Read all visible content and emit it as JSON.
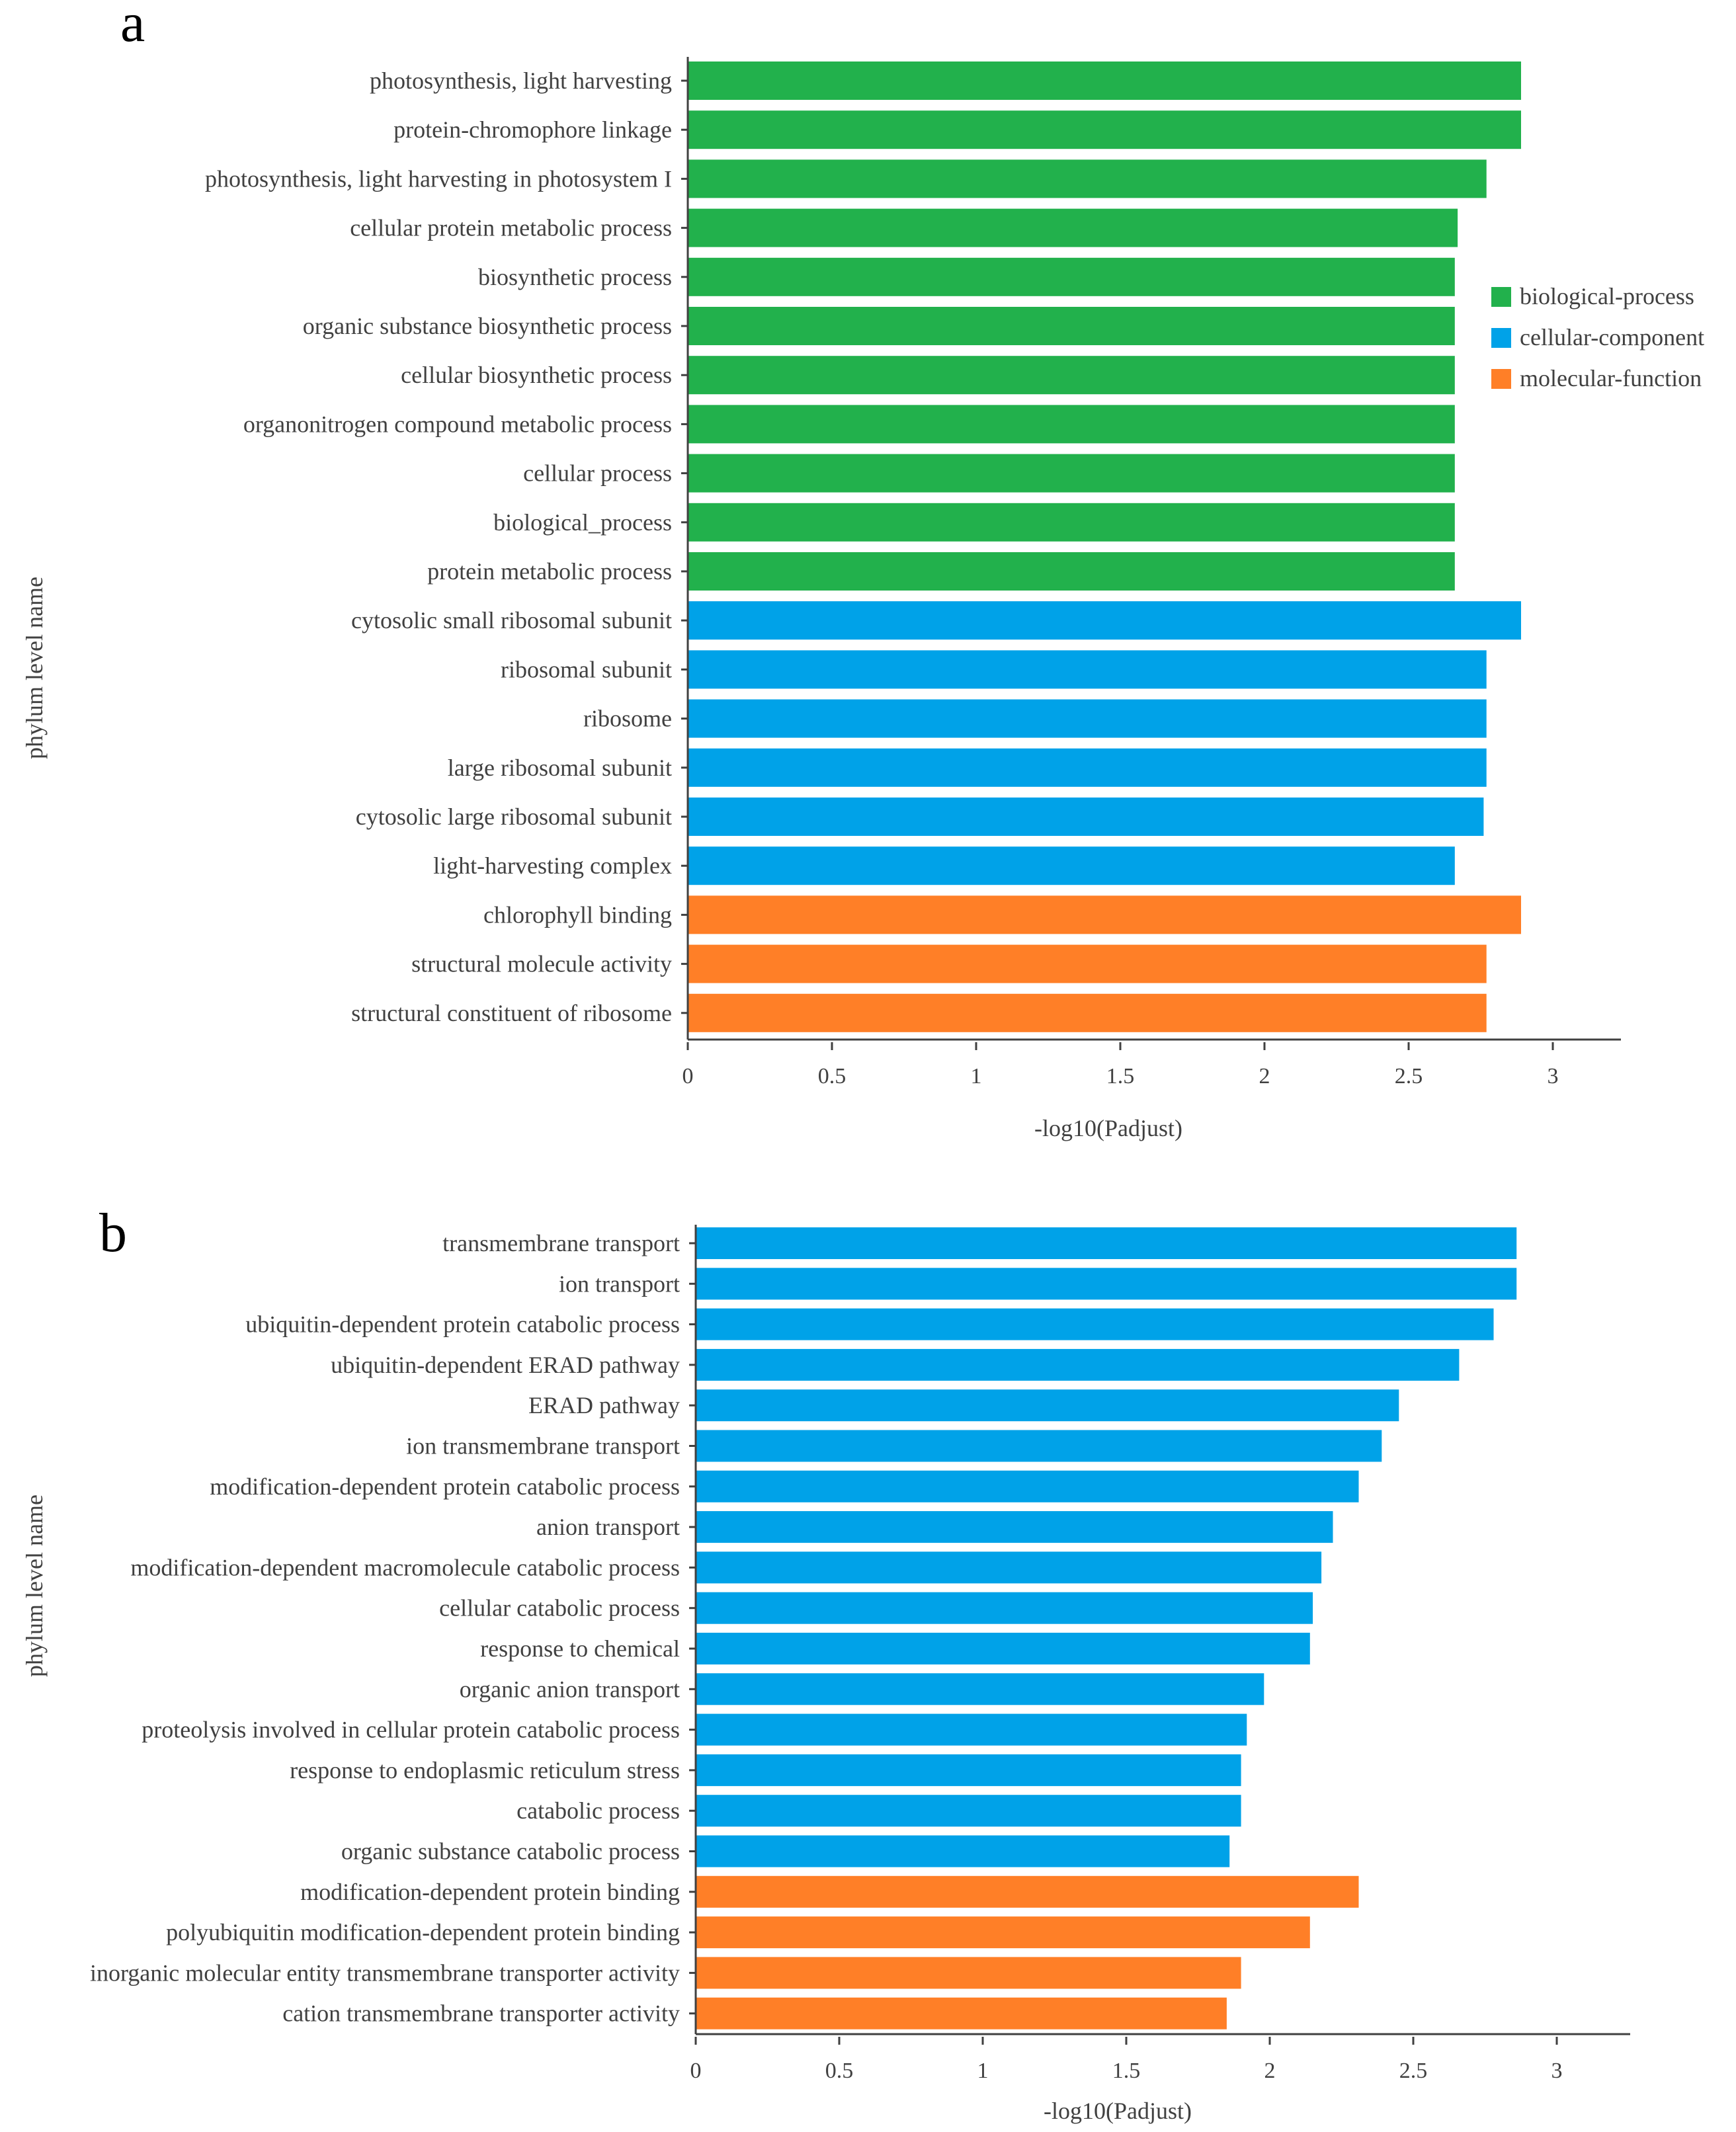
{
  "chart_data": [
    {
      "panel_label": "a",
      "type": "bar",
      "orientation": "horizontal",
      "ylabel": "phylum level name",
      "xlabel": "-log10(Padjust)",
      "xlim": [
        0,
        3.25
      ],
      "xticks": [
        0,
        0.5,
        1,
        1.5,
        2,
        2.5,
        3
      ],
      "xtick_labels": [
        "0",
        "0.5",
        "1",
        "1.5",
        "2",
        "2.5",
        "3"
      ],
      "legend": {
        "position": "right",
        "entries": [
          {
            "key": "biological-process",
            "label": "biological-process",
            "color": "#22b14c"
          },
          {
            "key": "cellular-component",
            "label": "cellular-component",
            "color": "#00a2e8"
          },
          {
            "key": "molecular-function",
            "label": "molecular-function",
            "color": "#ff7f27"
          }
        ]
      },
      "categories": [
        "photosynthesis, light harvesting",
        "protein-chromophore linkage",
        "photosynthesis, light harvesting in photosystem I",
        "cellular protein metabolic process",
        "biosynthetic process",
        "organic substance biosynthetic process",
        "cellular biosynthetic process",
        "organonitrogen compound metabolic process",
        "cellular process",
        "biological_process",
        "protein metabolic process",
        "cytosolic small ribosomal subunit",
        "ribosomal subunit",
        "ribosome",
        "large ribosomal subunit",
        "cytosolic large ribosomal subunit",
        "light-harvesting complex",
        "chlorophyll binding",
        "structural molecule activity",
        "structural constituent of ribosome"
      ],
      "values": [
        2.89,
        2.89,
        2.77,
        2.67,
        2.66,
        2.66,
        2.66,
        2.66,
        2.66,
        2.66,
        2.66,
        2.89,
        2.77,
        2.77,
        2.77,
        2.76,
        2.66,
        2.89,
        2.77,
        2.77
      ],
      "groups": [
        "biological-process",
        "biological-process",
        "biological-process",
        "biological-process",
        "biological-process",
        "biological-process",
        "biological-process",
        "biological-process",
        "biological-process",
        "biological-process",
        "biological-process",
        "cellular-component",
        "cellular-component",
        "cellular-component",
        "cellular-component",
        "cellular-component",
        "cellular-component",
        "molecular-function",
        "molecular-function",
        "molecular-function"
      ]
    },
    {
      "panel_label": "b",
      "type": "bar",
      "orientation": "horizontal",
      "ylabel": "phylum level name",
      "xlabel": "-log10(Padjust)",
      "xlim": [
        0,
        3.25
      ],
      "xticks": [
        0,
        0.5,
        1,
        1.5,
        2,
        2.5,
        3
      ],
      "xtick_labels": [
        "0",
        "0.5",
        "1",
        "1.5",
        "2",
        "2.5",
        "3"
      ],
      "categories": [
        "transmembrane transport",
        "ion transport",
        "ubiquitin-dependent protein catabolic process",
        "ubiquitin-dependent ERAD pathway",
        "ERAD pathway",
        "ion transmembrane transport",
        "modification-dependent protein catabolic process",
        "anion transport",
        "modification-dependent macromolecule catabolic process",
        "cellular catabolic process",
        "response to chemical",
        "organic anion transport",
        "proteolysis involved in cellular protein catabolic process",
        "response to endoplasmic reticulum stress",
        "catabolic process",
        "organic substance catabolic process",
        "modification-dependent protein binding",
        "polyubiquitin modification-dependent protein binding",
        "inorganic molecular entity transmembrane transporter activity",
        "cation transmembrane transporter activity"
      ],
      "values": [
        2.86,
        2.86,
        2.78,
        2.66,
        2.45,
        2.39,
        2.31,
        2.22,
        2.18,
        2.15,
        2.14,
        1.98,
        1.92,
        1.9,
        1.9,
        1.86,
        2.31,
        2.14,
        1.9,
        1.85
      ],
      "groups": [
        "cellular-component",
        "cellular-component",
        "cellular-component",
        "cellular-component",
        "cellular-component",
        "cellular-component",
        "cellular-component",
        "cellular-component",
        "cellular-component",
        "cellular-component",
        "cellular-component",
        "cellular-component",
        "cellular-component",
        "cellular-component",
        "cellular-component",
        "cellular-component",
        "molecular-function",
        "molecular-function",
        "molecular-function",
        "molecular-function"
      ]
    }
  ]
}
